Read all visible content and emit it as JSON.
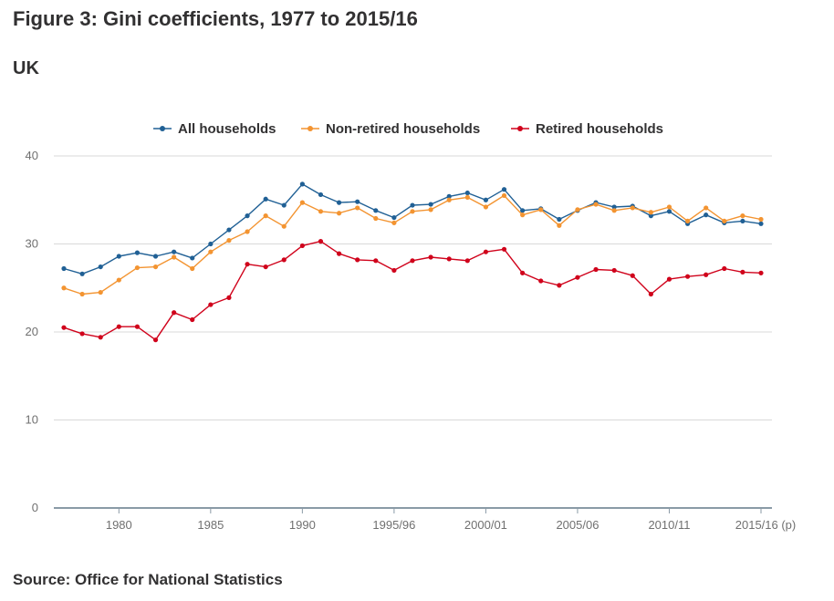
{
  "title": "Figure 3: Gini coefficients, 1977 to 2015/16",
  "subtitle": "UK",
  "source": "Source: Office for National Statistics",
  "chart_data": {
    "type": "line",
    "x": [
      1977,
      1978,
      1979,
      1980,
      1981,
      1982,
      1983,
      1984,
      1985,
      1986,
      1987,
      1988,
      1989,
      1990,
      1991,
      1992,
      1993,
      1994,
      1995,
      1996,
      1997,
      1998,
      1999,
      2000,
      2001,
      2002,
      2003,
      2004,
      2005,
      2006,
      2007,
      2008,
      2009,
      2010,
      2011,
      2012,
      2013,
      2014,
      2015
    ],
    "xticks": [
      {
        "pos": 1980,
        "label": "1980"
      },
      {
        "pos": 1985,
        "label": "1985"
      },
      {
        "pos": 1990,
        "label": "1990"
      },
      {
        "pos": 1995,
        "label": "1995/96"
      },
      {
        "pos": 2000,
        "label": "2000/01"
      },
      {
        "pos": 2005,
        "label": "2005/06"
      },
      {
        "pos": 2010,
        "label": "2010/11"
      },
      {
        "pos": 2015,
        "label": "2015/16 (p)"
      }
    ],
    "yticks": [
      0,
      10,
      20,
      30,
      40
    ],
    "ylim": [
      0,
      40
    ],
    "xlabel": "",
    "ylabel": "",
    "legend_position": "top-center",
    "series": [
      {
        "name": "All households",
        "color": "#206095",
        "values": [
          27.2,
          26.6,
          27.4,
          28.6,
          29.0,
          28.6,
          29.1,
          28.4,
          30.0,
          31.6,
          33.2,
          35.1,
          34.4,
          36.8,
          35.6,
          34.7,
          34.8,
          33.8,
          33.0,
          34.4,
          34.5,
          35.4,
          35.8,
          35.0,
          36.2,
          33.8,
          34.0,
          32.8,
          33.8,
          34.7,
          34.2,
          34.3,
          33.2,
          33.7,
          32.3,
          33.3,
          32.4,
          32.6,
          32.3
        ]
      },
      {
        "name": "Non-retired households",
        "color": "#f39431",
        "values": [
          25.0,
          24.3,
          24.5,
          25.9,
          27.3,
          27.4,
          28.5,
          27.2,
          29.1,
          30.4,
          31.4,
          33.2,
          32.0,
          34.7,
          33.7,
          33.5,
          34.1,
          32.9,
          32.4,
          33.7,
          33.9,
          35.0,
          35.3,
          34.2,
          35.5,
          33.3,
          33.9,
          32.1,
          33.9,
          34.5,
          33.8,
          34.1,
          33.6,
          34.2,
          32.6,
          34.1,
          32.6,
          33.2,
          32.8
        ]
      },
      {
        "name": "Retired households",
        "color": "#d0021b",
        "values": [
          20.5,
          19.8,
          19.4,
          20.6,
          20.6,
          19.1,
          22.2,
          21.4,
          23.1,
          23.9,
          27.7,
          27.4,
          28.2,
          29.8,
          30.3,
          28.9,
          28.2,
          28.1,
          27.0,
          28.1,
          28.5,
          28.3,
          28.1,
          29.1,
          29.4,
          26.7,
          25.8,
          25.3,
          26.2,
          27.1,
          27.0,
          26.4,
          24.3,
          26.0,
          26.3,
          26.5,
          27.2,
          26.8,
          26.7
        ]
      }
    ]
  }
}
